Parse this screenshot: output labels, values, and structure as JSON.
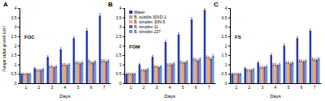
{
  "chart_data": [
    {
      "type": "bar",
      "title": "A",
      "annotation": "FOC",
      "ylabel": "Fungal radial growth (cm)",
      "xlabel": "Days",
      "categories": [
        1,
        2,
        3,
        4,
        5,
        6,
        7
      ],
      "ylim": [
        0,
        4
      ],
      "yticks": [
        0,
        0.5,
        1,
        1.5,
        2,
        2.5,
        3,
        3.5,
        4
      ],
      "series": [
        {
          "color": "#2437b5",
          "values": [
            0.5,
            0.8,
            1.4,
            1.8,
            2.4,
            2.8,
            3.6
          ],
          "errors": [
            0.05,
            0.05,
            0.08,
            0.1,
            0.1,
            0.12,
            0.12
          ]
        },
        {
          "color": "#a5a5a5",
          "values": [
            0.5,
            0.7,
            0.9,
            1.0,
            1.1,
            1.2,
            1.2
          ],
          "errors": [
            0.04,
            0.05,
            0.05,
            0.06,
            0.06,
            0.06,
            0.07
          ]
        },
        {
          "color": "#f4a460",
          "values": [
            0.5,
            0.7,
            0.9,
            1.0,
            1.1,
            1.1,
            1.2
          ],
          "errors": [
            0.04,
            0.05,
            0.05,
            0.06,
            0.06,
            0.06,
            0.07
          ]
        },
        {
          "color": "#7b4fa0",
          "values": [
            0.5,
            0.7,
            0.85,
            0.95,
            1.05,
            1.1,
            1.15
          ],
          "errors": [
            0.04,
            0.05,
            0.05,
            0.06,
            0.06,
            0.06,
            0.07
          ]
        },
        {
          "color": "#5b9bd5",
          "values": [
            0.5,
            0.75,
            0.9,
            1.0,
            1.1,
            1.15,
            1.2
          ],
          "errors": [
            0.04,
            0.05,
            0.05,
            0.06,
            0.06,
            0.06,
            0.07
          ]
        }
      ]
    },
    {
      "type": "bar",
      "title": "B",
      "annotation": "FOM",
      "xlabel": "Days",
      "legend": "upper left",
      "categories": [
        1,
        2,
        3,
        4,
        5,
        6,
        7
      ],
      "ylim": [
        0,
        4
      ],
      "yticks": [
        0,
        0.5,
        1,
        1.5,
        2,
        2.5,
        3,
        3.5,
        4
      ],
      "series": [
        {
          "name": "Water",
          "color": "#2437b5",
          "values": [
            0.5,
            1.0,
            1.4,
            2.2,
            2.6,
            3.4,
            3.9
          ],
          "errors": [
            0.05,
            0.06,
            0.08,
            0.1,
            0.1,
            0.1,
            0.08
          ]
        },
        {
          "name": "B. subtilis 30VD-1",
          "color": "#a5a5a5",
          "values": [
            0.5,
            0.7,
            0.9,
            1.0,
            1.15,
            1.3,
            1.4
          ],
          "errors": [
            0.04,
            0.05,
            0.05,
            0.06,
            0.06,
            0.06,
            0.07
          ]
        },
        {
          "name": "B. simplex 30N-5",
          "color": "#f4a460",
          "values": [
            0.5,
            0.7,
            0.9,
            1.0,
            1.1,
            1.25,
            1.35
          ],
          "errors": [
            0.04,
            0.05,
            0.05,
            0.06,
            0.06,
            0.06,
            0.07
          ]
        },
        {
          "name": "B. simplex 11",
          "color": "#7b4fa0",
          "values": [
            0.5,
            0.7,
            0.85,
            1.0,
            1.1,
            1.2,
            1.3
          ],
          "errors": [
            0.04,
            0.05,
            0.05,
            0.06,
            0.06,
            0.06,
            0.07
          ]
        },
        {
          "name": "B. simplex 237",
          "color": "#5b9bd5",
          "values": [
            0.5,
            0.75,
            0.9,
            1.05,
            1.15,
            1.3,
            1.45
          ],
          "errors": [
            0.04,
            0.05,
            0.05,
            0.06,
            0.06,
            0.06,
            0.07
          ]
        }
      ]
    },
    {
      "type": "bar",
      "title": "C",
      "annotation": "FS",
      "xlabel": "Days",
      "categories": [
        1,
        2,
        3,
        4,
        5,
        6,
        7
      ],
      "ylim": [
        0,
        4
      ],
      "yticks": [
        0,
        0.5,
        1,
        1.5,
        2,
        2.5,
        3,
        3.5,
        4
      ],
      "series": [
        {
          "color": "#2437b5",
          "values": [
            0.5,
            0.8,
            1.1,
            1.5,
            2.0,
            2.4,
            2.8
          ],
          "errors": [
            0.05,
            0.05,
            0.07,
            0.08,
            0.1,
            0.1,
            0.1
          ]
        },
        {
          "color": "#a5a5a5",
          "values": [
            0.5,
            0.7,
            0.85,
            1.0,
            1.1,
            1.2,
            1.3
          ],
          "errors": [
            0.04,
            0.05,
            0.05,
            0.06,
            0.06,
            0.06,
            0.07
          ]
        },
        {
          "color": "#f4a460",
          "values": [
            0.5,
            0.7,
            0.85,
            1.0,
            1.1,
            1.2,
            1.25
          ],
          "errors": [
            0.04,
            0.05,
            0.05,
            0.06,
            0.06,
            0.06,
            0.07
          ]
        },
        {
          "color": "#7b4fa0",
          "values": [
            0.5,
            0.7,
            0.85,
            0.95,
            1.05,
            1.15,
            1.25
          ],
          "errors": [
            0.04,
            0.05,
            0.05,
            0.06,
            0.06,
            0.06,
            0.07
          ]
        },
        {
          "color": "#5b9bd5",
          "values": [
            0.5,
            0.75,
            0.9,
            1.0,
            1.1,
            1.2,
            1.3
          ],
          "errors": [
            0.04,
            0.05,
            0.05,
            0.06,
            0.06,
            0.06,
            0.07
          ]
        }
      ]
    }
  ]
}
